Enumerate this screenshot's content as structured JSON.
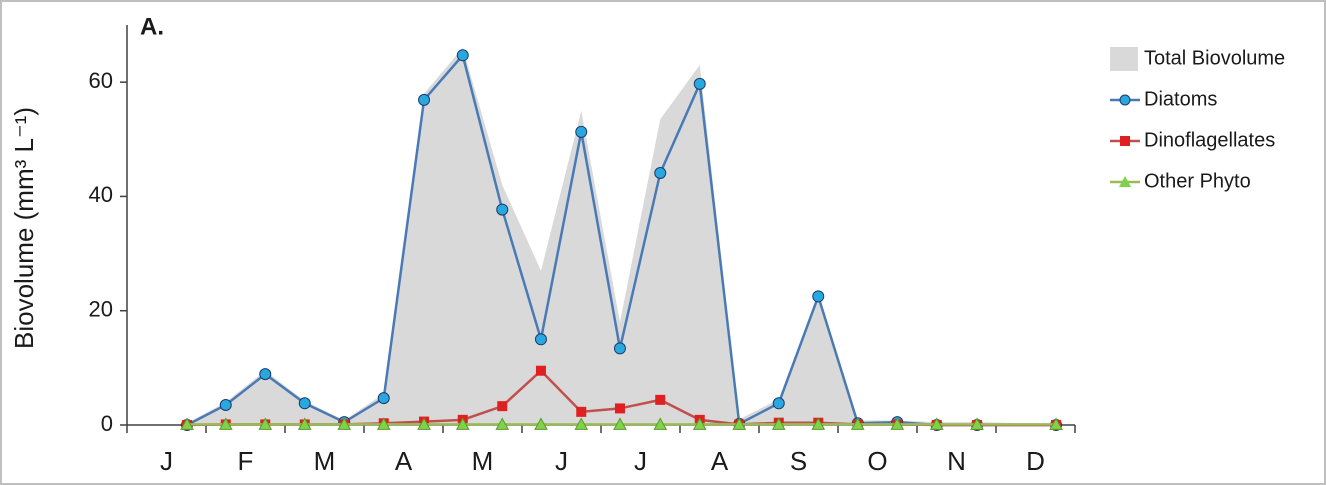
{
  "chart_data": {
    "type": "line",
    "panel_label": "A.",
    "y_label": "Biovolume  (mm³ L⁻¹)",
    "month_labels": [
      "J",
      "F",
      "M",
      "A",
      "M",
      "J",
      "J",
      "A",
      "S",
      "O",
      "N",
      "D"
    ],
    "xlim": [
      0,
      12
    ],
    "ylim": [
      0,
      70
    ],
    "yticks": [
      0,
      20,
      40,
      60
    ],
    "legend": "top-right",
    "x": [
      0.76,
      1.25,
      1.75,
      2.25,
      2.75,
      3.25,
      3.76,
      4.25,
      4.75,
      5.24,
      5.75,
      6.24,
      6.75,
      7.25,
      7.75,
      8.25,
      8.75,
      9.25,
      9.75,
      10.25,
      10.76,
      11.76
    ],
    "series": [
      {
        "name": "Total Biovolume",
        "kind": "area",
        "color": "#d9d9d9",
        "values": [
          0.3,
          4,
          9.5,
          4.2,
          0.8,
          5.5,
          58,
          66,
          42,
          27,
          55,
          18,
          53.5,
          63,
          1,
          4.5,
          23,
          0.8,
          0.8,
          0.5,
          0.5,
          0.2
        ]
      },
      {
        "name": "Diatoms",
        "kind": "line",
        "marker": "circle",
        "color": "#4a7ab5",
        "marker_color": "#29a8e0",
        "values": [
          0,
          3.5,
          8.9,
          3.8,
          0.5,
          4.7,
          56.9,
          64.7,
          37.7,
          15,
          51.3,
          13.4,
          44.1,
          59.7,
          0.2,
          3.8,
          22.5,
          0.3,
          0.5,
          0,
          0,
          0
        ]
      },
      {
        "name": "Dinoflagellates",
        "kind": "line",
        "marker": "square",
        "color": "#c0504d",
        "marker_color": "#e02020",
        "values": [
          0,
          0.1,
          0.1,
          0.1,
          0.1,
          0.3,
          0.6,
          0.9,
          3.3,
          9.5,
          2.3,
          2.9,
          4.4,
          0.9,
          0.1,
          0.4,
          0.4,
          0.1,
          0.1,
          0,
          0,
          0
        ]
      },
      {
        "name": "Other Phyto",
        "kind": "line",
        "marker": "triangle",
        "color": "#9bbb59",
        "marker_color": "#7fd24a",
        "values": [
          0.1,
          0.1,
          0.1,
          0.1,
          0.1,
          0.1,
          0.1,
          0.1,
          0.1,
          0.1,
          0.1,
          0.1,
          0.1,
          0.1,
          0.1,
          0.1,
          0.1,
          0.1,
          0.1,
          0.1,
          0.1,
          0.1
        ]
      }
    ]
  }
}
